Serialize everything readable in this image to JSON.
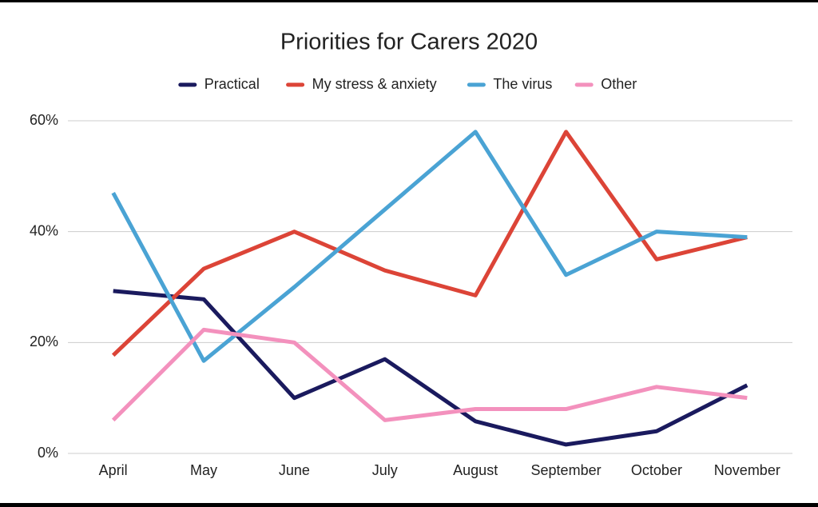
{
  "chart_data": {
    "type": "line",
    "title": "Priorities for Carers 2020",
    "categories": [
      "April",
      "May",
      "June",
      "July",
      "August",
      "September",
      "October",
      "November"
    ],
    "series": [
      {
        "name": "Practical",
        "color": "#1a1a5e",
        "values": [
          29.3,
          27.8,
          10,
          17,
          5.8,
          1.6,
          4,
          12.3
        ]
      },
      {
        "name": "My stress & anxiety",
        "color": "#dc4437",
        "values": [
          17.7,
          33.3,
          40,
          33,
          28.5,
          58,
          35,
          39
        ]
      },
      {
        "name": "The virus",
        "color": "#4aa3d4",
        "values": [
          47,
          16.7,
          30,
          44,
          58,
          32.2,
          40,
          39
        ]
      },
      {
        "name": "Other",
        "color": "#f391bd",
        "values": [
          6,
          22.3,
          20,
          6,
          8,
          8,
          12,
          10
        ]
      }
    ],
    "ylim": [
      0,
      60
    ],
    "yticks": [
      {
        "value": 0,
        "label": "0%"
      },
      {
        "value": 20,
        "label": "20%"
      },
      {
        "value": 40,
        "label": "40%"
      },
      {
        "value": 60,
        "label": "60%"
      }
    ],
    "grid": true,
    "legend": "top"
  }
}
